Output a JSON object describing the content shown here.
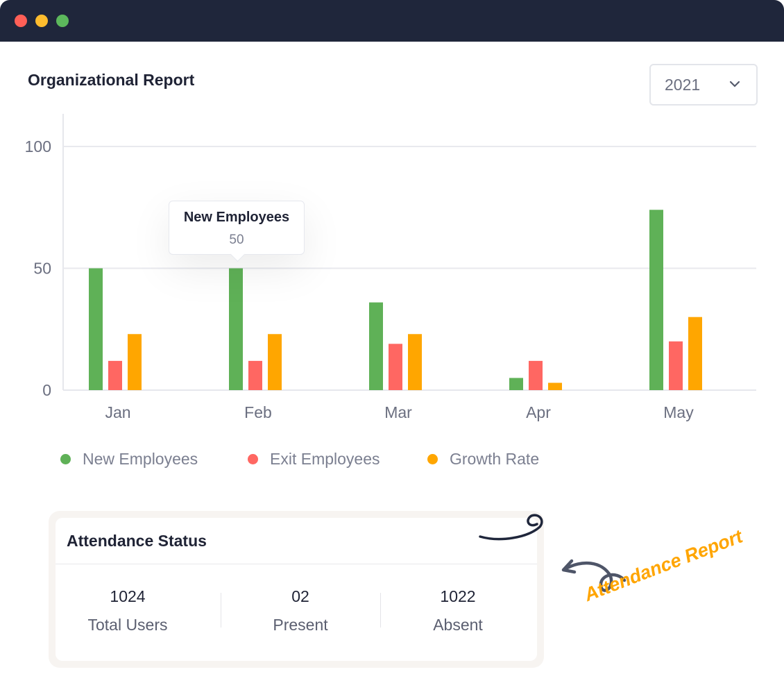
{
  "window": {
    "controls": [
      {
        "name": "close",
        "color": "#ff5f57"
      },
      {
        "name": "minimize",
        "color": "#febc2e"
      },
      {
        "name": "maximize",
        "color": "#28c840"
      }
    ]
  },
  "header": {
    "title": "Organizational Report",
    "year_select": {
      "value": "2021"
    }
  },
  "tooltip": {
    "series": "New Employees",
    "value": "50"
  },
  "chart_data": {
    "type": "bar",
    "categories": [
      "Jan",
      "Feb",
      "Mar",
      "Apr",
      "May"
    ],
    "series": [
      {
        "name": "New Employees",
        "color": "#5fb157",
        "values": [
          50,
          50,
          36,
          5,
          74
        ]
      },
      {
        "name": "Exit Employees",
        "color": "#ff6762",
        "values": [
          12,
          12,
          19,
          12,
          20
        ]
      },
      {
        "name": "Growth Rate",
        "color": "#ffa600",
        "values": [
          23,
          23,
          23,
          3,
          30
        ]
      }
    ],
    "yticks": [
      "0",
      "50",
      "100"
    ],
    "ylim": [
      0,
      100
    ],
    "grid": true,
    "legend": "bottom"
  },
  "attendance": {
    "title": "Attendance Status",
    "stats": [
      {
        "value": "1024",
        "label": "Total Users"
      },
      {
        "value": "02",
        "label": "Present"
      },
      {
        "value": "1022",
        "label": "Absent"
      }
    ],
    "annotation": "Attendance Report"
  }
}
